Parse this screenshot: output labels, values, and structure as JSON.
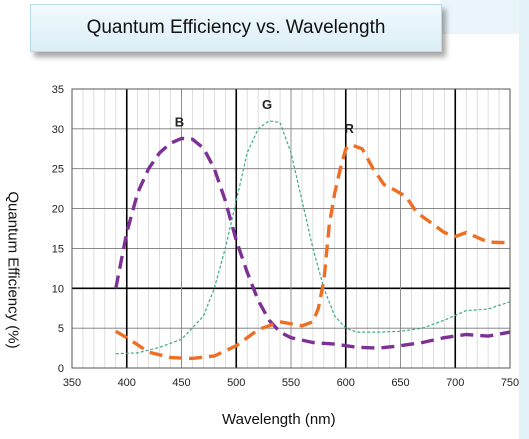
{
  "title": "Quantum Efficiency vs. Wavelength",
  "chart_data": {
    "type": "line",
    "xlabel": "Wavelength (nm)",
    "ylabel": "Quantum Efficiency (%)",
    "xlim": [
      350,
      750
    ],
    "ylim": [
      0,
      35
    ],
    "xticks": [
      350,
      400,
      450,
      500,
      550,
      600,
      650,
      700,
      750
    ],
    "yticks": [
      0,
      5,
      10,
      15,
      20,
      25,
      30,
      35
    ],
    "grid": true,
    "series": [
      {
        "name": "B",
        "color": "#7b3294",
        "style": "dashed",
        "points": [
          [
            390,
            10
          ],
          [
            400,
            17
          ],
          [
            410,
            22
          ],
          [
            420,
            25
          ],
          [
            430,
            27
          ],
          [
            440,
            28.2
          ],
          [
            450,
            28.8
          ],
          [
            460,
            28.7
          ],
          [
            470,
            27.6
          ],
          [
            480,
            25
          ],
          [
            490,
            21
          ],
          [
            500,
            16
          ],
          [
            510,
            12
          ],
          [
            520,
            8.5
          ],
          [
            530,
            6
          ],
          [
            540,
            4.5
          ],
          [
            550,
            3.8
          ],
          [
            570,
            3.2
          ],
          [
            590,
            3.0
          ],
          [
            610,
            2.6
          ],
          [
            630,
            2.5
          ],
          [
            650,
            2.8
          ],
          [
            670,
            3.2
          ],
          [
            690,
            3.8
          ],
          [
            710,
            4.2
          ],
          [
            730,
            4.0
          ],
          [
            750,
            4.5
          ]
        ]
      },
      {
        "name": "G",
        "color": "#3aaa8c",
        "style": "dotted",
        "points": [
          [
            390,
            1.8
          ],
          [
            410,
            1.9
          ],
          [
            430,
            2.6
          ],
          [
            450,
            3.6
          ],
          [
            470,
            6.5
          ],
          [
            480,
            10
          ],
          [
            490,
            15
          ],
          [
            500,
            21
          ],
          [
            510,
            27
          ],
          [
            520,
            30
          ],
          [
            530,
            31
          ],
          [
            540,
            30.8
          ],
          [
            550,
            27
          ],
          [
            560,
            21
          ],
          [
            570,
            15
          ],
          [
            580,
            10
          ],
          [
            590,
            6.5
          ],
          [
            600,
            5
          ],
          [
            610,
            4.5
          ],
          [
            630,
            4.5
          ],
          [
            650,
            4.6
          ],
          [
            670,
            5
          ],
          [
            690,
            6
          ],
          [
            710,
            7.2
          ],
          [
            730,
            7.4
          ],
          [
            750,
            8.3
          ]
        ]
      },
      {
        "name": "R",
        "color": "#ee6f24",
        "style": "dashed",
        "points": [
          [
            390,
            4.6
          ],
          [
            400,
            3.8
          ],
          [
            420,
            2.0
          ],
          [
            440,
            1.3
          ],
          [
            460,
            1.2
          ],
          [
            480,
            1.5
          ],
          [
            500,
            2.8
          ],
          [
            520,
            4.8
          ],
          [
            540,
            5.8
          ],
          [
            560,
            5.3
          ],
          [
            570,
            5.8
          ],
          [
            575,
            7.5
          ],
          [
            580,
            11
          ],
          [
            585,
            18
          ],
          [
            590,
            22
          ],
          [
            595,
            25
          ],
          [
            600,
            27.5
          ],
          [
            605,
            28
          ],
          [
            615,
            27.5
          ],
          [
            625,
            25
          ],
          [
            635,
            23
          ],
          [
            645,
            22.3
          ],
          [
            655,
            21.5
          ],
          [
            665,
            19.5
          ],
          [
            675,
            18.5
          ],
          [
            690,
            17
          ],
          [
            700,
            16.5
          ],
          [
            710,
            17
          ],
          [
            730,
            15.8
          ],
          [
            750,
            15.7
          ]
        ]
      }
    ],
    "annotations": [
      "B",
      "G",
      "R"
    ]
  }
}
